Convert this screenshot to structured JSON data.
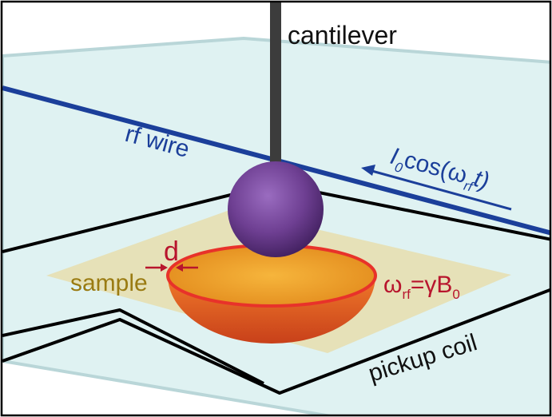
{
  "labels": {
    "cantilever": "cantilever",
    "rf_wire": "rf wire",
    "sample": "sample",
    "pickup_coil": "pickup coil",
    "d": "d",
    "current_main": "I",
    "current_sub": "0",
    "current_mid": "cos(ω",
    "current_sub2": "rf",
    "current_end": "t)",
    "resonance_main": "ω",
    "resonance_sub": "rf",
    "resonance_mid": "=γB",
    "resonance_sub2": "0"
  },
  "colors": {
    "frame_border": "#000000",
    "plane_fill": "#dff2f2",
    "plane_edge": "#b9d6d8",
    "cantilever": "#3c3c3c",
    "rf_wire": "#1b3f9a",
    "rf_wire_text": "#1b3f9a",
    "sphere": "#7a4a9e",
    "sample_plate": "#e6dfb4",
    "sample_text": "#9a7b12",
    "bowl_outer": "#e3521f",
    "bowl_inner": "#f0a12a",
    "bowl_rim": "#e8322a",
    "d_text": "#b8152d",
    "resonance_text": "#b8152d",
    "coil": "#000000"
  }
}
